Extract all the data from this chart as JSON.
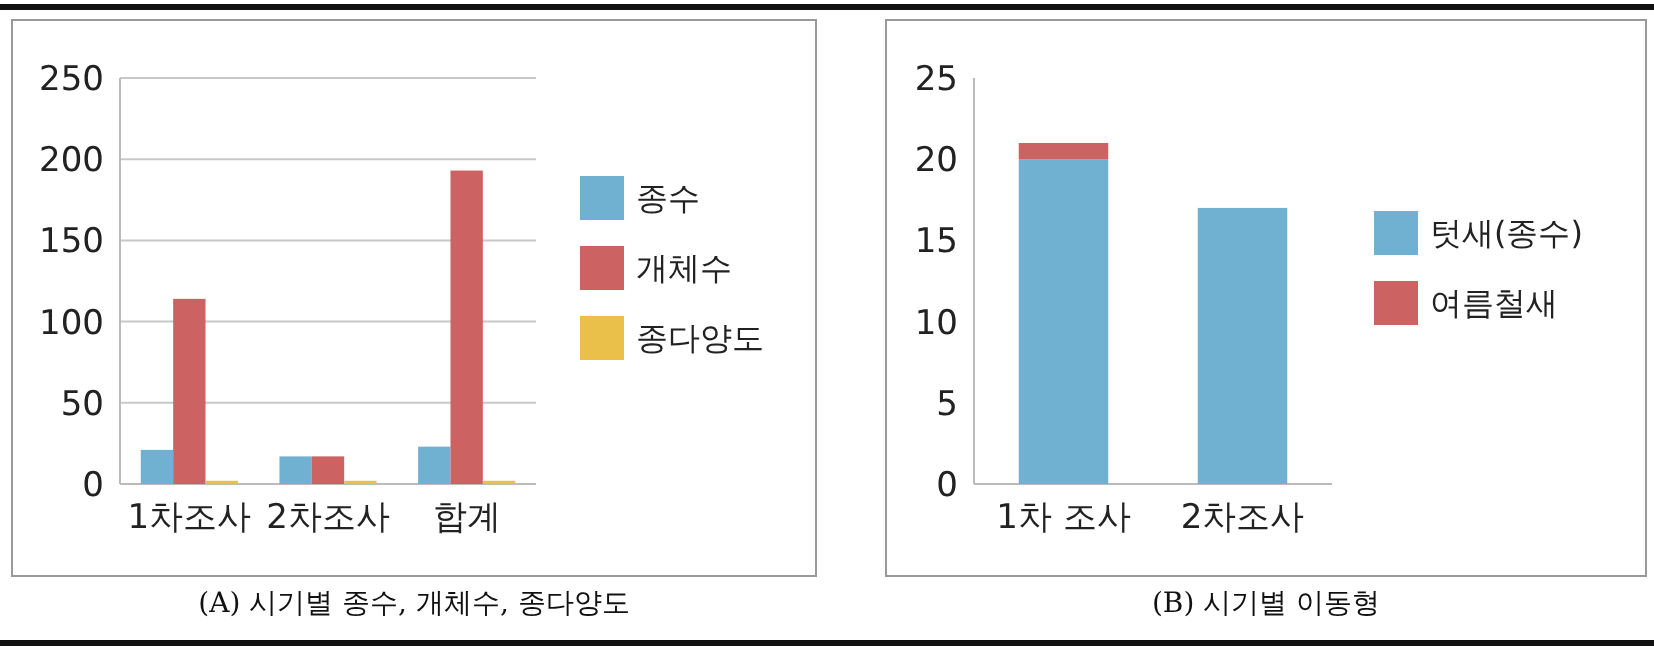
{
  "chart_data": [
    {
      "type": "bar",
      "title": "(A) 시기별 종수, 개체수, 종다양도",
      "categories": [
        "1차조사",
        "2차조사",
        "합계"
      ],
      "series": [
        {
          "name": "종수",
          "color": "#70b0d0",
          "values": [
            21,
            17,
            23
          ]
        },
        {
          "name": "개체수",
          "color": "#cd6262",
          "values": [
            114,
            17,
            193
          ]
        },
        {
          "name": "종다양도",
          "color": "#eac04a",
          "values": [
            2,
            2,
            2
          ]
        }
      ],
      "ylim": [
        0,
        250
      ],
      "yticks": [
        0,
        50,
        100,
        150,
        200,
        250
      ],
      "grid": "y",
      "legend": "right"
    },
    {
      "type": "bar",
      "title": "(B) 시기별 이동형",
      "categories": [
        "1차 조사",
        "2차조사"
      ],
      "stacked": true,
      "series": [
        {
          "name": "텃새(종수)",
          "color": "#70b0d0",
          "values": [
            20,
            17
          ]
        },
        {
          "name": "여름철새",
          "color": "#cd6262",
          "values": [
            1,
            0
          ]
        }
      ],
      "ylim": [
        0,
        25
      ],
      "yticks": [
        0,
        5,
        10,
        15,
        20,
        25
      ],
      "legend": "right"
    }
  ]
}
